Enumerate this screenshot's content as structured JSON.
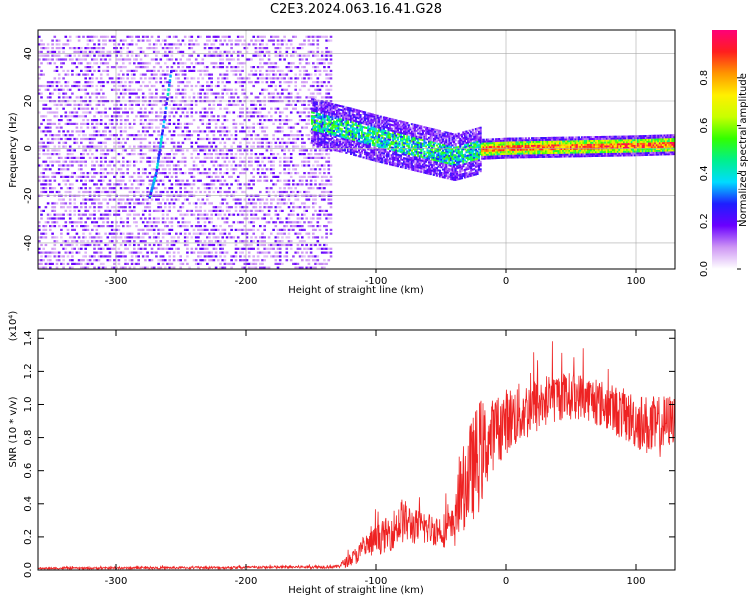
{
  "title": "C2E3.2024.063.16.41.G28",
  "chart_data": [
    {
      "type": "heatmap",
      "title": "C2E3.2024.063.16.41.G28",
      "xlabel": "Height of straight line (km)",
      "ylabel": "Frequency (Hz)",
      "xlim": [
        -360,
        130
      ],
      "ylim": [
        -51,
        50
      ],
      "xticks": [
        -300,
        -200,
        -100,
        0,
        100
      ],
      "yticks": [
        -40,
        -20,
        0,
        20,
        40
      ],
      "grid": true,
      "colorbar": {
        "label": "Normalized spectral amplitude",
        "range": [
          0,
          1
        ],
        "ticks": [
          "0.0",
          "0.2",
          "0.4",
          "0.6",
          "0.8"
        ],
        "colors": [
          "#ffffff",
          "#ce96f4",
          "#6a00ff",
          "#1e1eff",
          "#00dcff",
          "#00f08c",
          "#32ff00",
          "#c8ff00",
          "#fff000",
          "#ff9600",
          "#ff1e1e",
          "#ff0078"
        ]
      },
      "features": [
        {
          "name": "noise",
          "x_range": [
            -360,
            -135
          ],
          "freq_range": [
            -50,
            49
          ]
        },
        {
          "name": "streak",
          "points": [
            [
              -275,
              -20
            ],
            [
              -270,
              -10
            ],
            [
              -265,
              8
            ],
            [
              -258,
              35
            ]
          ]
        },
        {
          "name": "signal",
          "x_range": [
            -150,
            130
          ],
          "freq_center": [
            [
              -150,
              12
            ],
            [
              -120,
              8
            ],
            [
              -100,
              5
            ],
            [
              -70,
              1
            ],
            [
              -40,
              -3
            ],
            [
              -20,
              0
            ],
            [
              0,
              0.5
            ],
            [
              50,
              1
            ],
            [
              100,
              1.5
            ],
            [
              130,
              2
            ]
          ]
        }
      ]
    },
    {
      "type": "line",
      "xlabel": "Height of straight line (km)",
      "ylabel": "SNR (10 * v/v)",
      "y_multiplier": "(x10⁴)",
      "xlim": [
        -360,
        130
      ],
      "ylim": [
        0,
        1.45
      ],
      "xticks": [
        -300,
        -200,
        -100,
        0,
        100
      ],
      "yticks": [
        "0.0",
        "0.2",
        "0.4",
        "0.6",
        "0.8",
        "1.0",
        "1.2",
        "1.4"
      ],
      "grid": false,
      "color": "#ee2222",
      "envelope": {
        "x": [
          -360,
          -200,
          -130,
          -120,
          -110,
          -100,
          -90,
          -80,
          -70,
          -60,
          -50,
          -40,
          -35,
          -30,
          -25,
          -20,
          -15,
          -10,
          0,
          20,
          40,
          60,
          80,
          100,
          115,
          130
        ],
        "mid": [
          0.01,
          0.015,
          0.02,
          0.06,
          0.12,
          0.18,
          0.22,
          0.3,
          0.26,
          0.25,
          0.24,
          0.25,
          0.45,
          0.55,
          0.62,
          0.7,
          0.75,
          0.82,
          0.9,
          0.98,
          1.05,
          1.05,
          0.98,
          0.9,
          0.85,
          0.92
        ],
        "amp": [
          0.005,
          0.008,
          0.01,
          0.04,
          0.07,
          0.09,
          0.11,
          0.14,
          0.11,
          0.1,
          0.1,
          0.13,
          0.22,
          0.3,
          0.32,
          0.35,
          0.25,
          0.22,
          0.2,
          0.18,
          0.15,
          0.14,
          0.15,
          0.17,
          0.2,
          0.15
        ]
      }
    }
  ]
}
